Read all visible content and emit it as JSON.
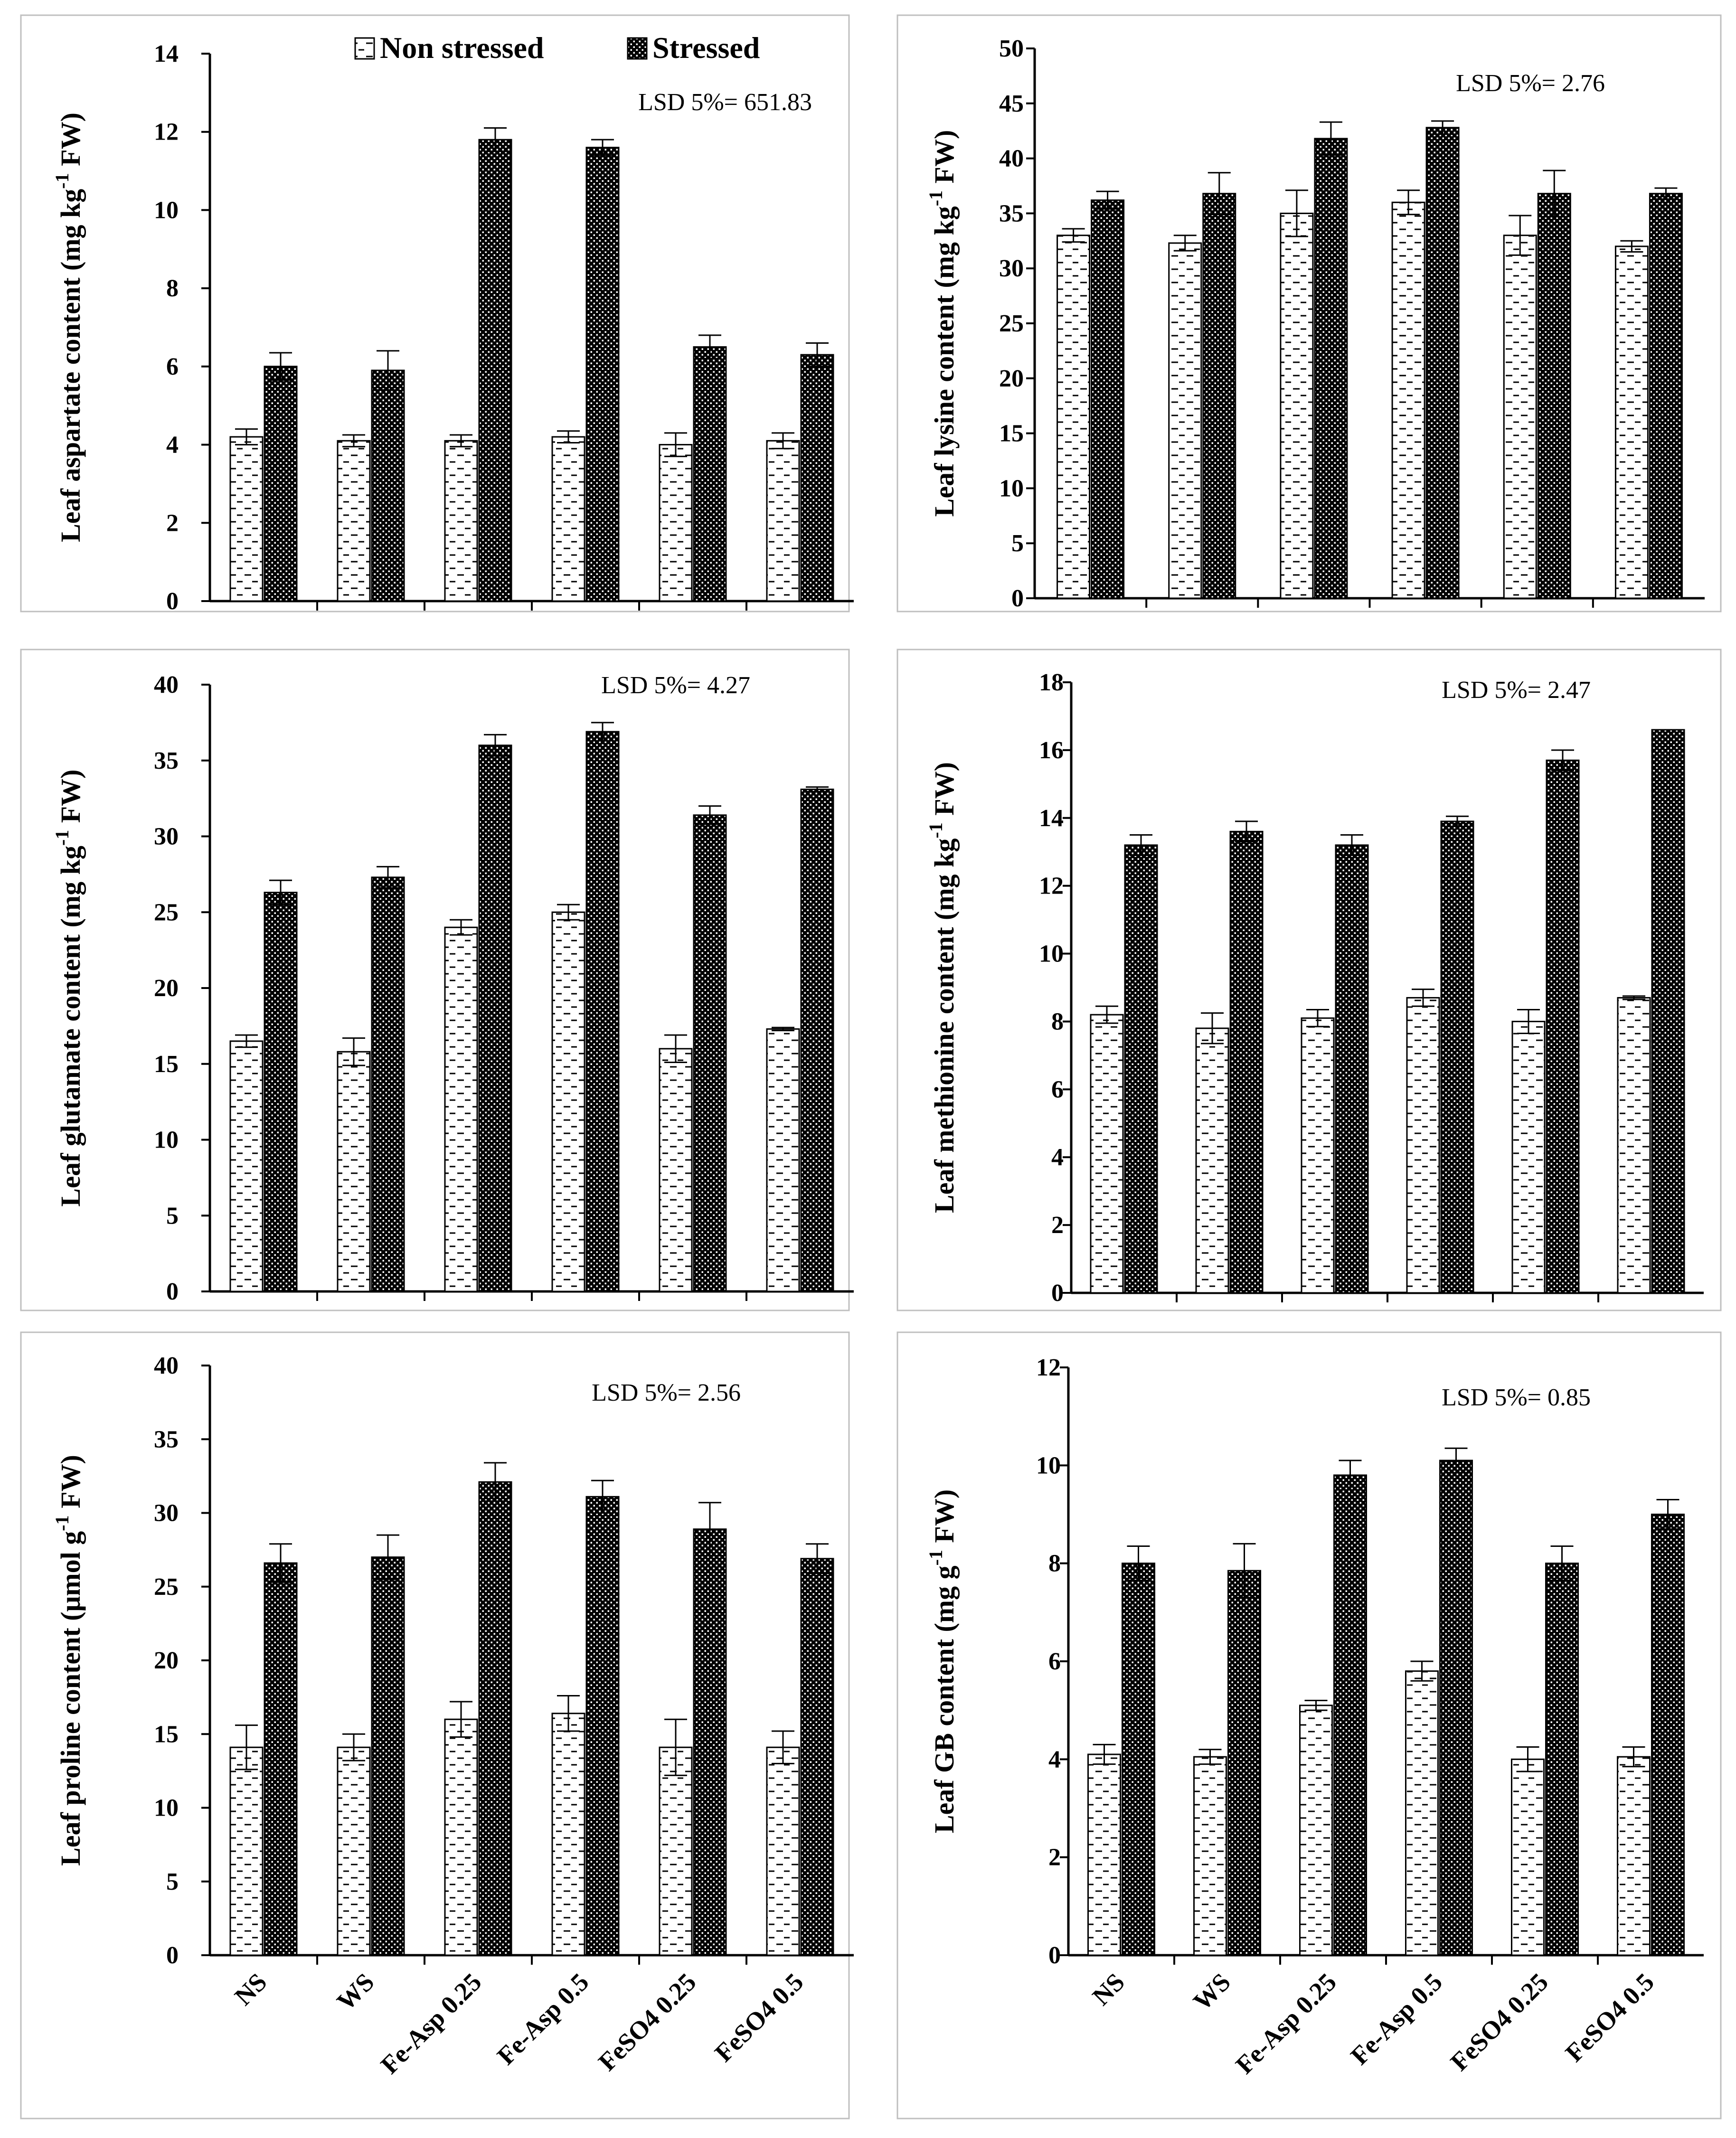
{
  "legend": {
    "non_stressed_label": "Non stressed",
    "stressed_label": "Stressed"
  },
  "colors": {
    "ink": "#000000",
    "background": "#ffffff",
    "panel_border": "#bfbfbf"
  },
  "chart_data": [
    {
      "type": "bar",
      "panel": "top-left",
      "ylabel_prefix": "Leaf aspartate content (mg kg",
      "ylabel_sup": "-1",
      "ylabel_suffix": " FW)",
      "ylim": [
        0,
        14
      ],
      "yticks": [
        0,
        2,
        4,
        6,
        8,
        10,
        12,
        14
      ],
      "annotation": "LSD 5%= 651.83",
      "categories": [
        "NS",
        "WS",
        "Fe-Asp 0.25",
        "Fe-Asp 0.5",
        "FeSO4 0.25",
        "FeSO4 0.5"
      ],
      "series": [
        {
          "name": "Non stressed",
          "values": [
            4.2,
            4.1,
            4.1,
            4.2,
            4.0,
            4.1
          ],
          "errors": [
            0.2,
            0.15,
            0.15,
            0.15,
            0.3,
            0.2
          ]
        },
        {
          "name": "Stressed",
          "values": [
            6.0,
            5.9,
            11.8,
            11.6,
            6.5,
            6.3
          ],
          "errors": [
            0.35,
            0.5,
            0.3,
            0.2,
            0.3,
            0.3
          ]
        }
      ]
    },
    {
      "type": "bar",
      "panel": "top-right",
      "ylabel_prefix": "Leaf lysine content (mg kg",
      "ylabel_sup": "-1",
      "ylabel_suffix": " FW)",
      "ylim": [
        0,
        50
      ],
      "yticks": [
        0,
        5,
        10,
        15,
        20,
        25,
        30,
        35,
        40,
        45,
        50
      ],
      "annotation": "LSD 5%= 2.76",
      "categories": [
        "NS",
        "WS",
        "Fe-Asp 0.25",
        "Fe-Asp 0.5",
        "FeSO4 0.25",
        "FeSO4 0.5"
      ],
      "series": [
        {
          "name": "Non stressed",
          "values": [
            33,
            32.3,
            35,
            36,
            33,
            32
          ],
          "errors": [
            0.6,
            0.7,
            2.1,
            1.1,
            1.8,
            0.5
          ]
        },
        {
          "name": "Stressed",
          "values": [
            36.2,
            36.8,
            41.8,
            42.8,
            36.8,
            36.8
          ],
          "errors": [
            0.8,
            1.9,
            1.5,
            0.6,
            2.1,
            0.5
          ]
        }
      ]
    },
    {
      "type": "bar",
      "panel": "middle-left",
      "ylabel_prefix": "Leaf glutamate content (mg kg",
      "ylabel_sup": "-1",
      "ylabel_suffix": " FW)",
      "ylim": [
        0,
        40
      ],
      "yticks": [
        0,
        5,
        10,
        15,
        20,
        25,
        30,
        35,
        40
      ],
      "annotation": "LSD 5%= 4.27",
      "categories": [
        "NS",
        "WS",
        "Fe-Asp 0.25",
        "Fe-Asp 0.5",
        "FeSO4 0.25",
        "FeSO4 0.5"
      ],
      "series": [
        {
          "name": "Non stressed",
          "values": [
            16.5,
            15.8,
            24,
            25,
            16,
            17.3
          ],
          "errors": [
            0.4,
            0.9,
            0.5,
            0.5,
            0.9,
            0.1
          ]
        },
        {
          "name": "Stressed",
          "values": [
            26.3,
            27.3,
            36,
            36.9,
            31.4,
            33.1
          ],
          "errors": [
            0.8,
            0.7,
            0.7,
            0.6,
            0.6,
            0.15
          ]
        }
      ]
    },
    {
      "type": "bar",
      "panel": "middle-right",
      "ylabel_prefix": "Leaf methionine content (mg kg",
      "ylabel_sup": "-1",
      "ylabel_suffix": " FW)",
      "ylim": [
        0,
        18
      ],
      "yticks": [
        0,
        2,
        4,
        6,
        8,
        10,
        12,
        14,
        16,
        18
      ],
      "annotation": "LSD 5%= 2.47",
      "categories": [
        "NS",
        "WS",
        "Fe-Asp 0.25",
        "Fe-Asp 0.5",
        "FeSO4 0.25",
        "FeSO4 0.5"
      ],
      "series": [
        {
          "name": "Non stressed",
          "values": [
            8.2,
            7.8,
            8.1,
            8.7,
            8.0,
            8.7
          ],
          "errors": [
            0.25,
            0.45,
            0.25,
            0.25,
            0.35,
            0.05
          ]
        },
        {
          "name": "Stressed",
          "values": [
            13.2,
            13.6,
            13.2,
            13.9,
            15.7,
            16.6
          ],
          "errors": [
            0.3,
            0.3,
            0.3,
            0.15,
            0.3,
            0.0
          ]
        }
      ]
    },
    {
      "type": "bar",
      "panel": "bottom-left",
      "ylabel_prefix": "Leaf proline content (μmol g",
      "ylabel_sup": "-1",
      "ylabel_suffix": " FW)",
      "ylim": [
        0,
        40
      ],
      "yticks": [
        0,
        5,
        10,
        15,
        20,
        25,
        30,
        35,
        40
      ],
      "annotation": "LSD 5%= 2.56",
      "categories": [
        "NS",
        "WS",
        "Fe-Asp 0.25",
        "Fe-Asp 0.5",
        "FeSO4 0.25",
        "FeSO4 0.5"
      ],
      "series": [
        {
          "name": "Non stressed",
          "values": [
            14.1,
            14.1,
            16,
            16.4,
            14.1,
            14.1
          ],
          "errors": [
            1.5,
            0.9,
            1.2,
            1.2,
            1.9,
            1.1
          ]
        },
        {
          "name": "Stressed",
          "values": [
            26.6,
            27,
            32.1,
            31.1,
            28.9,
            26.9
          ],
          "errors": [
            1.3,
            1.5,
            1.3,
            1.1,
            1.8,
            1.0
          ]
        }
      ]
    },
    {
      "type": "bar",
      "panel": "bottom-right",
      "ylabel_prefix": "Leaf GB content (mg g",
      "ylabel_sup": "-1",
      "ylabel_suffix": " FW)",
      "ylim": [
        0,
        12
      ],
      "yticks": [
        0,
        2,
        4,
        6,
        8,
        10,
        12
      ],
      "annotation": "LSD 5%= 0.85",
      "categories": [
        "NS",
        "WS",
        "Fe-Asp 0.25",
        "Fe-Asp 0.5",
        "FeSO4 0.25",
        "FeSO4 0.5"
      ],
      "series": [
        {
          "name": "Non stressed",
          "values": [
            4.1,
            4.05,
            5.1,
            5.8,
            4.0,
            4.05
          ],
          "errors": [
            0.2,
            0.15,
            0.1,
            0.2,
            0.25,
            0.2
          ]
        },
        {
          "name": "Stressed",
          "values": [
            8.0,
            7.85,
            9.8,
            10.1,
            8.0,
            9.0
          ],
          "errors": [
            0.35,
            0.55,
            0.3,
            0.25,
            0.35,
            0.3
          ]
        }
      ]
    }
  ]
}
